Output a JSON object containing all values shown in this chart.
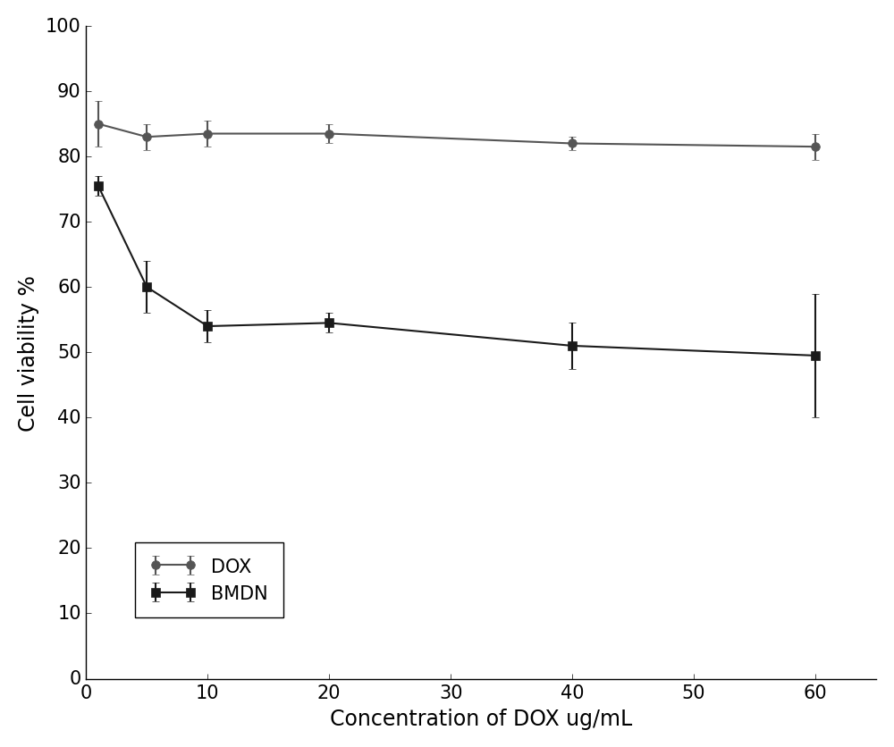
{
  "title": "",
  "xlabel": "Concentration of DOX ug/mL",
  "ylabel": "Cell viability %",
  "x_values": [
    1,
    5,
    10,
    20,
    40,
    60
  ],
  "BMDN_y": [
    75.5,
    60.0,
    54.0,
    54.5,
    51.0,
    49.5
  ],
  "BMDN_yerr": [
    1.5,
    4.0,
    2.5,
    1.5,
    3.5,
    9.5
  ],
  "DOX_y": [
    85.0,
    83.0,
    83.5,
    83.5,
    82.0,
    81.5
  ],
  "DOX_yerr": [
    3.5,
    2.0,
    2.0,
    1.5,
    1.0,
    2.0
  ],
  "BMDN_color": "#1a1a1a",
  "DOX_color": "#555555",
  "marker_BMDN": "s",
  "marker_DOX": "o",
  "xlim": [
    0,
    65
  ],
  "ylim": [
    0,
    100
  ],
  "xticks": [
    0,
    10,
    20,
    30,
    40,
    50,
    60
  ],
  "yticks": [
    0,
    10,
    20,
    30,
    40,
    50,
    60,
    70,
    80,
    90,
    100
  ],
  "legend_labels": [
    "BMDN",
    "DOX"
  ],
  "legend_loc": "lower left",
  "background_color": "#ffffff",
  "linewidth": 1.5,
  "markersize": 7,
  "capsize": 3,
  "elinewidth": 1.5,
  "xlabel_fontsize": 17,
  "ylabel_fontsize": 17,
  "tick_fontsize": 15,
  "legend_fontsize": 15
}
